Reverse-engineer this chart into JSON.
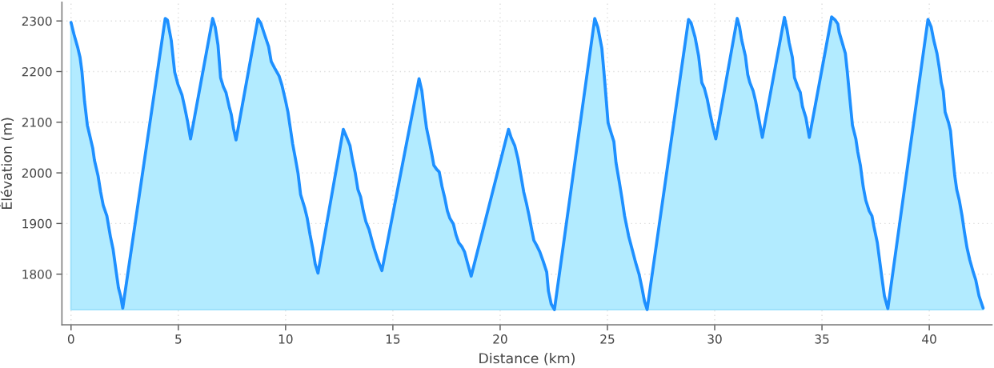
{
  "chart_data": {
    "type": "area",
    "xlabel": "Distance (km)",
    "ylabel": "Élévation (m)",
    "x": [
      0,
      0.14,
      0.32,
      0.42,
      0.51,
      0.63,
      0.76,
      0.85,
      1.01,
      1.09,
      1.26,
      1.38,
      1.5,
      1.67,
      1.84,
      1.96,
      2.09,
      2.21,
      2.31,
      2.41,
      4.39,
      4.49,
      4.67,
      4.83,
      4.98,
      5.17,
      5.29,
      5.42,
      5.57,
      6.6,
      6.72,
      6.85,
      6.97,
      7.1,
      7.22,
      7.37,
      7.47,
      7.57,
      7.69,
      8.71,
      8.84,
      9.02,
      9.21,
      9.33,
      9.49,
      9.7,
      9.83,
      9.99,
      10.11,
      10.2,
      10.33,
      10.45,
      10.58,
      10.7,
      10.89,
      11.01,
      11.14,
      11.26,
      11.38,
      11.51,
      12.69,
      12.85,
      13.0,
      13.12,
      13.25,
      13.37,
      13.5,
      13.62,
      13.74,
      13.89,
      14.02,
      14.14,
      14.3,
      14.49,
      16.22,
      16.35,
      16.47,
      16.57,
      16.7,
      16.82,
      16.91,
      17.04,
      17.16,
      17.29,
      17.41,
      17.54,
      17.66,
      17.82,
      17.94,
      18.07,
      18.22,
      18.34,
      18.46,
      18.65,
      20.39,
      20.51,
      20.68,
      20.83,
      20.95,
      21.1,
      21.22,
      21.35,
      21.47,
      21.57,
      21.7,
      21.85,
      22.01,
      22.17,
      22.25,
      22.38,
      22.53,
      24.41,
      24.55,
      24.74,
      24.87,
      25.03,
      25.18,
      25.3,
      25.4,
      25.55,
      25.67,
      25.8,
      25.99,
      26.17,
      26.3,
      26.48,
      26.61,
      26.73,
      26.85,
      28.78,
      28.9,
      29.09,
      29.25,
      29.4,
      29.52,
      29.65,
      29.77,
      29.9,
      30.05,
      31.05,
      31.16,
      31.26,
      31.43,
      31.54,
      31.64,
      31.79,
      31.91,
      32.07,
      32.22,
      33.25,
      33.37,
      33.47,
      33.62,
      33.72,
      33.87,
      33.99,
      34.09,
      34.25,
      34.41,
      35.45,
      35.61,
      35.74,
      35.8,
      35.93,
      36.09,
      36.17,
      36.3,
      36.42,
      36.58,
      36.67,
      36.79,
      36.92,
      37.04,
      37.2,
      37.33,
      37.42,
      37.58,
      37.66,
      37.79,
      37.91,
      38.07,
      39.94,
      40.09,
      40.21,
      40.36,
      40.48,
      40.56,
      40.65,
      40.74,
      40.9,
      40.99,
      41.09,
      41.19,
      41.28,
      41.4,
      41.53,
      41.64,
      41.76,
      41.89,
      42.05,
      42.17,
      42.32,
      42.51
    ],
    "series": [
      {
        "color": "#1e90ff",
        "values": [
          2297,
          2273,
          2246,
          2228,
          2199,
          2141,
          2094,
          2078,
          2049,
          2025,
          1994,
          1962,
          1936,
          1915,
          1873,
          1849,
          1809,
          1773,
          1757,
          1733,
          2305,
          2302,
          2262,
          2199,
          2175,
          2154,
          2131,
          2104,
          2067,
          2305,
          2288,
          2252,
          2188,
          2170,
          2159,
          2131,
          2115,
          2088,
          2065,
          2304,
          2296,
          2273,
          2249,
          2220,
          2207,
          2191,
          2173,
          2144,
          2120,
          2094,
          2057,
          2030,
          1999,
          1957,
          1931,
          1910,
          1878,
          1852,
          1820,
          1802,
          2086,
          2070,
          2054,
          2025,
          1999,
          1967,
          1952,
          1925,
          1904,
          1888,
          1867,
          1849,
          1828,
          1807,
          2186,
          2162,
          2120,
          2088,
          2062,
          2036,
          2015,
          2007,
          2002,
          1973,
          1952,
          1925,
          1910,
          1899,
          1878,
          1862,
          1854,
          1844,
          1825,
          1796,
          2086,
          2070,
          2054,
          2028,
          1999,
          1962,
          1941,
          1915,
          1888,
          1867,
          1857,
          1844,
          1825,
          1804,
          1767,
          1741,
          1730,
          2305,
          2288,
          2246,
          2183,
          2099,
          2078,
          2062,
          2020,
          1983,
          1952,
          1915,
          1875,
          1846,
          1825,
          1799,
          1773,
          1746,
          1730,
          2303,
          2296,
          2267,
          2231,
          2178,
          2167,
          2146,
          2120,
          2094,
          2067,
          2305,
          2288,
          2262,
          2231,
          2194,
          2178,
          2162,
          2141,
          2104,
          2070,
          2307,
          2283,
          2257,
          2228,
          2188,
          2170,
          2159,
          2131,
          2109,
          2070,
          2308,
          2302,
          2294,
          2278,
          2259,
          2236,
          2204,
          2146,
          2094,
          2067,
          2041,
          2015,
          1973,
          1946,
          1925,
          1915,
          1894,
          1862,
          1836,
          1794,
          1757,
          1732,
          2303,
          2288,
          2262,
          2236,
          2204,
          2178,
          2162,
          2120,
          2099,
          2083,
          2036,
          1994,
          1967,
          1946,
          1915,
          1883,
          1852,
          1828,
          1804,
          1788,
          1757,
          1733
        ]
      }
    ],
    "xlim": [
      -0.425,
      42.925
    ],
    "ylim": [
      1700,
      2337
    ],
    "xticks": [
      0,
      5,
      10,
      15,
      20,
      25,
      30,
      35,
      40
    ],
    "yticks": [
      1800,
      1900,
      2000,
      2100,
      2200,
      2300
    ],
    "grid": true
  }
}
